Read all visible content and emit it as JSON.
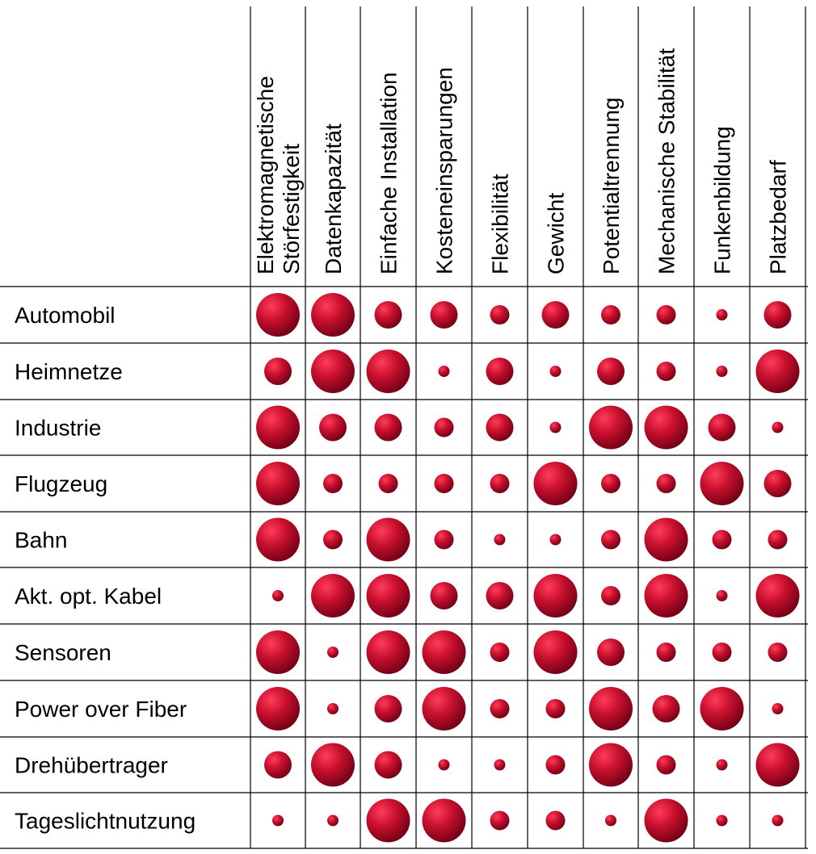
{
  "chart_data": {
    "type": "bubble-matrix",
    "title": "",
    "columns": [
      [
        "Elektromagnetische",
        "Störfestigkeit"
      ],
      [
        "Datenkapazität"
      ],
      [
        "Einfache Installation"
      ],
      [
        "Kosteneinsparungen"
      ],
      [
        "Flexibilität"
      ],
      [
        "Gewicht"
      ],
      [
        "Potentialtrennung"
      ],
      [
        "Mechanische Stabilität"
      ],
      [
        "Funkenbildung"
      ],
      [
        "Platzbedarf"
      ]
    ],
    "rows": [
      "Automobil",
      "Heimnetze",
      "Industrie",
      "Flugzeug",
      "Bahn",
      "Akt. opt. Kabel",
      "Sensoren",
      "Power over Fiber",
      "Drehübertrager",
      "Tageslichtnutzung"
    ],
    "scale": [
      1,
      5
    ],
    "values": [
      [
        5,
        5,
        3,
        3,
        2,
        3,
        2,
        2,
        1,
        3
      ],
      [
        3,
        5,
        5,
        1,
        3,
        1,
        3,
        2,
        1,
        5
      ],
      [
        5,
        3,
        3,
        2,
        3,
        1,
        5,
        5,
        3,
        1
      ],
      [
        5,
        2,
        2,
        2,
        2,
        5,
        2,
        2,
        5,
        3
      ],
      [
        5,
        2,
        5,
        2,
        1,
        1,
        2,
        5,
        2,
        2
      ],
      [
        1,
        5,
        5,
        3,
        3,
        5,
        2,
        5,
        1,
        5
      ],
      [
        5,
        1,
        5,
        5,
        2,
        5,
        3,
        2,
        2,
        2
      ],
      [
        5,
        1,
        3,
        5,
        2,
        2,
        5,
        3,
        5,
        1
      ],
      [
        3,
        5,
        3,
        1,
        1,
        2,
        5,
        2,
        1,
        5
      ],
      [
        1,
        1,
        5,
        5,
        2,
        2,
        1,
        5,
        1,
        1
      ]
    ],
    "bubble_color": "#c8102e",
    "bubble_highlight": "#ff3d5a",
    "bubble_shadow": "#6e0014"
  }
}
